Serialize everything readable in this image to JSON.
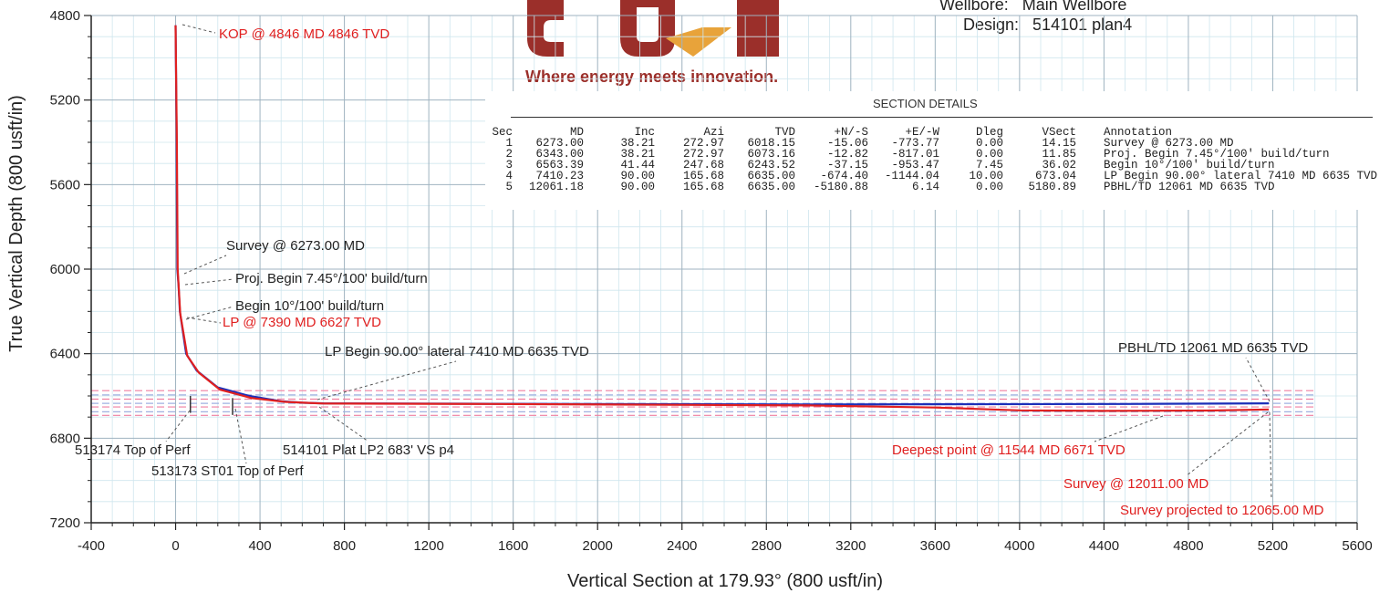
{
  "header": {
    "wellbore_label": "Wellbore:",
    "wellbore_value": "Main Wellbore",
    "design_label": "Design:",
    "design_value": "514101 plan4",
    "tagline": "Where energy meets innovation."
  },
  "logo": {
    "colors": {
      "maroon": "#9b2f2a",
      "orange": "#e8a33a"
    }
  },
  "section_details": {
    "title": "SECTION DETAILS",
    "columns": [
      "Sec",
      "MD",
      "Inc",
      "Azi",
      "TVD",
      "+N/-S",
      "+E/-W",
      "Dleg",
      "VSect",
      "Annotation"
    ],
    "rows": [
      [
        "1",
        "6273.00",
        "38.21",
        "272.97",
        "6018.15",
        "-15.06",
        "-773.77",
        "0.00",
        "14.15",
        "Survey @ 6273.00 MD"
      ],
      [
        "2",
        "6343.00",
        "38.21",
        "272.97",
        "6073.16",
        "-12.82",
        "-817.01",
        "0.00",
        "11.85",
        "Proj. Begin 7.45°/100' build/turn"
      ],
      [
        "3",
        "6563.39",
        "41.44",
        "247.68",
        "6243.52",
        "-37.15",
        "-953.47",
        "7.45",
        "36.02",
        "Begin 10°/100' build/turn"
      ],
      [
        "4",
        "7410.23",
        "90.00",
        "165.68",
        "6635.00",
        "-674.40",
        "-1144.04",
        "10.00",
        "673.04",
        "LP Begin 90.00° lateral 7410 MD 6635 TVD"
      ],
      [
        "5",
        "12061.18",
        "90.00",
        "165.68",
        "6635.00",
        "-5180.88",
        "6.14",
        "0.00",
        "5180.89",
        "PBHL/TD 12061 MD 6635 TVD"
      ]
    ]
  },
  "chart_data": {
    "type": "line",
    "xlabel": "Vertical Section at 179.93° (800 usft/in)",
    "ylabel": "True Vertical Depth (800 usft/in)",
    "xlim": [
      -400,
      5600
    ],
    "ylim": [
      4800,
      7200
    ],
    "y_inverted": true,
    "x_ticks": [
      -400,
      0,
      400,
      800,
      1200,
      1600,
      2000,
      2400,
      2800,
      3200,
      3600,
      4000,
      4400,
      4800,
      5200,
      5600
    ],
    "y_ticks": [
      4800,
      5200,
      5600,
      6000,
      6400,
      6800,
      7200
    ],
    "grid": true,
    "series": [
      {
        "color": "#1c2fb8",
        "x": [
          0,
          5,
          8,
          14,
          20,
          50,
          100,
          200,
          350,
          500,
          600,
          700,
          1500,
          3000,
          4500,
          5181
        ],
        "y": [
          4846,
          5400,
          6000,
          6080,
          6200,
          6400,
          6480,
          6560,
          6600,
          6625,
          6632,
          6635,
          6637,
          6640,
          6638,
          6635
        ]
      },
      {
        "color": "#e02020",
        "x": [
          0,
          6,
          10,
          15,
          22,
          55,
          110,
          210,
          360,
          520,
          630,
          700,
          1500,
          3000,
          3600,
          4000,
          4400,
          4900,
          5181
        ],
        "y": [
          4846,
          5400,
          6000,
          6090,
          6210,
          6410,
          6490,
          6570,
          6610,
          6628,
          6633,
          6636,
          6638,
          6645,
          6655,
          6668,
          6671,
          6669,
          6664
        ]
      }
    ],
    "target_lines": {
      "red": [
        6575,
        6615,
        6652,
        6692
      ],
      "blue": [
        6595,
        6635,
        6675
      ],
      "x_start": -400,
      "x_end": 5400
    },
    "annotations": [
      {
        "text": "KOP @ 4846 MD 4846 TVD",
        "color": "#e02020",
        "x": 0,
        "y": 4846
      },
      {
        "text": "Survey @ 6273.00 MD",
        "color": "#222222",
        "x": 10,
        "y": 6010
      },
      {
        "text": "Proj. Begin 7.45°/100' build/turn",
        "color": "#222222",
        "x": 12,
        "y": 6080
      },
      {
        "text": "Begin 10°/100' build/turn",
        "color": "#222222",
        "x": 36,
        "y": 6245
      },
      {
        "text": "LP @ 7390 MD 6627 TVD",
        "color": "#e02020",
        "x": 20,
        "y": 6245
      },
      {
        "text": "LP Begin 90.00° lateral 7410 MD 6635 TVD",
        "color": "#222222",
        "x": 673,
        "y": 6635
      },
      {
        "text": "PBHL/TD 12061 MD 6635 TVD",
        "color": "#222222",
        "x": 5181,
        "y": 6635
      },
      {
        "text": "513174 Top of Perf",
        "color": "#222222",
        "x": 70,
        "y": 6660
      },
      {
        "text": "513173 ST01 Top of Perf",
        "color": "#222222",
        "x": 270,
        "y": 6665
      },
      {
        "text": "514101 Plat LP2 683' VS p4",
        "color": "#222222",
        "x": 683,
        "y": 6640
      },
      {
        "text": "Deepest point @ 11544 MD 6671 TVD",
        "color": "#e02020",
        "x": 4700,
        "y": 6671
      },
      {
        "text": "Survey @ 12011.00 MD",
        "color": "#e02020",
        "x": 5150,
        "y": 6664
      },
      {
        "text": "Survey projected to 12065.00 MD",
        "color": "#e02020",
        "x": 5181,
        "y": 6664
      }
    ]
  }
}
